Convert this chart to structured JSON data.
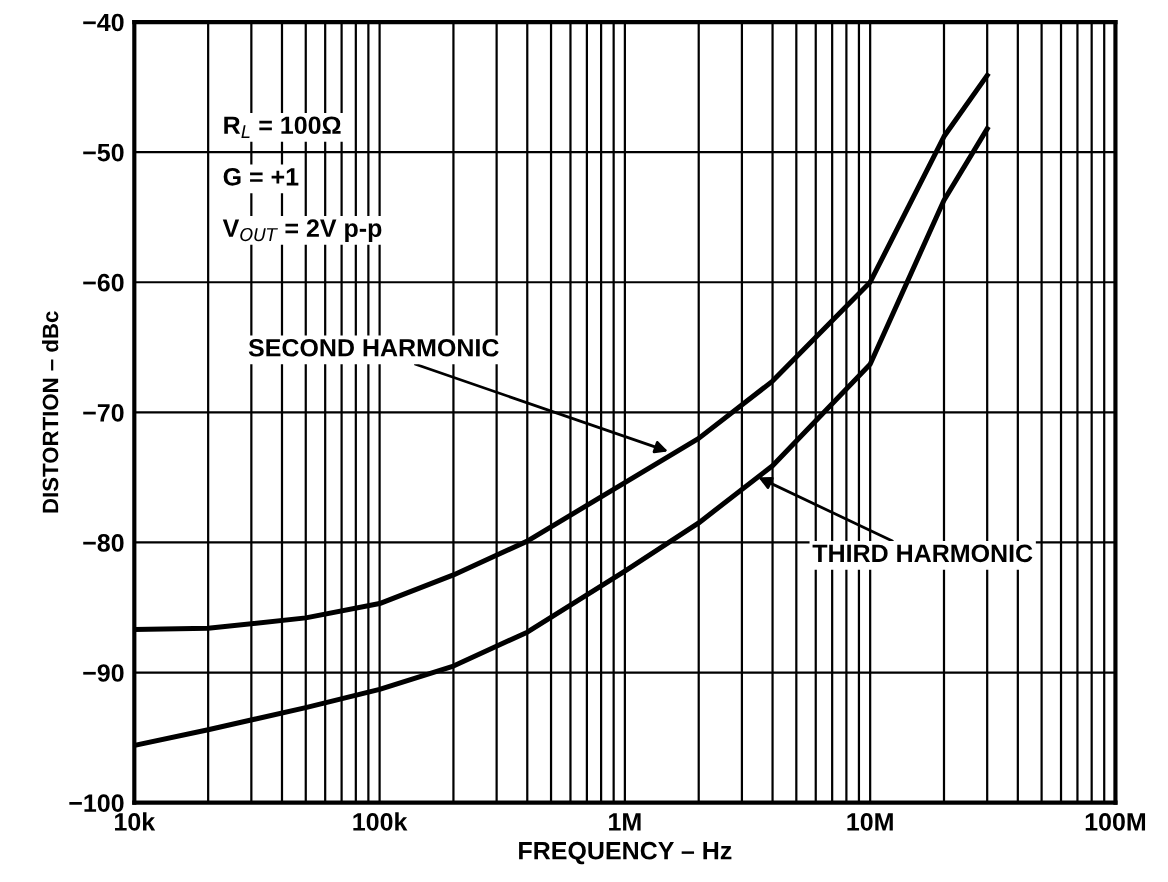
{
  "chart_data": {
    "type": "line",
    "xlabel": "FREQUENCY – Hz",
    "ylabel": "DISTORTION – dBc",
    "log": "x",
    "grid": true,
    "marker": "none",
    "line_style": "solid",
    "xlim": [
      10000,
      100000000
    ],
    "ylim": [
      -100,
      -40
    ],
    "xticks": [
      {
        "value": 10000,
        "label": "10k"
      },
      {
        "value": 100000,
        "label": "100k"
      },
      {
        "value": 1000000,
        "label": "1M"
      },
      {
        "value": 10000000,
        "label": "10M"
      },
      {
        "value": 100000000,
        "label": "100M"
      }
    ],
    "yticks": [
      -100,
      -90,
      -80,
      -70,
      -60,
      -50,
      -40
    ],
    "series": [
      {
        "color": "#000000",
        "x": [
          10000,
          20000,
          50000,
          100000,
          200000,
          400000,
          1000000,
          2000000,
          4000000,
          10000000,
          20000000,
          30000000
        ],
        "values": [
          -86.7,
          -86.6,
          -85.8,
          -84.7,
          -82.5,
          -79.9,
          -75.4,
          -72.0,
          -67.6,
          -60.0,
          -48.8,
          -44.1
        ]
      },
      {
        "color": "#000000",
        "x": [
          10000,
          20000,
          50000,
          100000,
          200000,
          400000,
          1000000,
          2000000,
          4000000,
          10000000,
          20000000,
          30000000
        ],
        "values": [
          -95.6,
          -94.4,
          -92.7,
          -91.3,
          -89.5,
          -86.9,
          -82.2,
          -78.5,
          -74.1,
          -66.3,
          -53.7,
          -48.2
        ]
      }
    ],
    "annotations": [
      "R$_{L}$ = 100Ω",
      "G = +1",
      "V$_{OUT}$ = 2V p-p",
      {
        "text": "SECOND HARMONIC",
        "x": 1500000,
        "y": -73.0
      },
      {
        "text": "THIRD HARMONIC",
        "x": 3500000,
        "y": -75.0
      }
    ]
  }
}
